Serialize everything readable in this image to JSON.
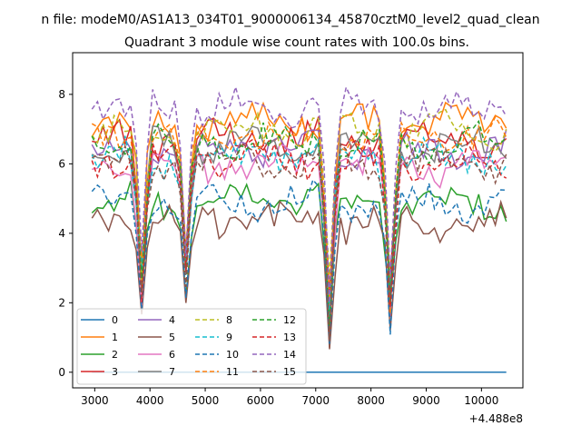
{
  "chart_data": {
    "type": "line",
    "suptitle": "n file: modeM0/AS1A13_034T01_9000006134_45870cztM0_level2_quad_clean",
    "title": "Quadrant 3 module wise count rates with 100.0s bins.",
    "xlabel": "",
    "ylabel": "",
    "x_offset_label": "+4.488e8",
    "xlim": [
      2600,
      10750
    ],
    "ylim": [
      -0.45,
      9.2
    ],
    "x_ticks": [
      3000,
      4000,
      5000,
      6000,
      7000,
      8000,
      9000,
      10000
    ],
    "y_ticks": [
      0,
      2,
      4,
      6,
      8
    ],
    "x_start": 2950,
    "x_step": 100,
    "legend_position": "lower-left",
    "legend_columns": 4,
    "grid": false,
    "dips": [
      {
        "x": 3850,
        "depth": 0.7
      },
      {
        "x": 4650,
        "depth": 0.55
      },
      {
        "x": 7250,
        "depth": 0.9
      },
      {
        "x": 8350,
        "depth": 0.8
      }
    ],
    "series": [
      {
        "name": "0",
        "color": "#1f77b4",
        "style": "solid",
        "base": 0.0,
        "constant": true
      },
      {
        "name": "1",
        "color": "#ff7f0e",
        "style": "solid",
        "base": 7.2
      },
      {
        "name": "2",
        "color": "#2ca02c",
        "style": "solid",
        "base": 4.9
      },
      {
        "name": "3",
        "color": "#d62728",
        "style": "solid",
        "base": 6.7
      },
      {
        "name": "4",
        "color": "#9467bd",
        "style": "solid",
        "base": 6.4
      },
      {
        "name": "5",
        "color": "#8c564b",
        "style": "solid",
        "base": 4.3
      },
      {
        "name": "6",
        "color": "#e377c2",
        "style": "solid",
        "base": 5.9
      },
      {
        "name": "7",
        "color": "#7f7f7f",
        "style": "solid",
        "base": 6.5
      },
      {
        "name": "8",
        "color": "#bcbd22",
        "style": "dashed",
        "base": 7.0
      },
      {
        "name": "9",
        "color": "#17becf",
        "style": "dashed",
        "base": 6.2
      },
      {
        "name": "10",
        "color": "#1f77b4",
        "style": "dashed",
        "base": 4.9
      },
      {
        "name": "11",
        "color": "#ff7f0e",
        "style": "dashed",
        "base": 6.8
      },
      {
        "name": "12",
        "color": "#2ca02c",
        "style": "dashed",
        "base": 6.6
      },
      {
        "name": "13",
        "color": "#d62728",
        "style": "dashed",
        "base": 6.1
      },
      {
        "name": "14",
        "color": "#9467bd",
        "style": "dashed",
        "base": 7.6
      },
      {
        "name": "15",
        "color": "#8c564b",
        "style": "dashed",
        "base": 6.0
      }
    ]
  }
}
